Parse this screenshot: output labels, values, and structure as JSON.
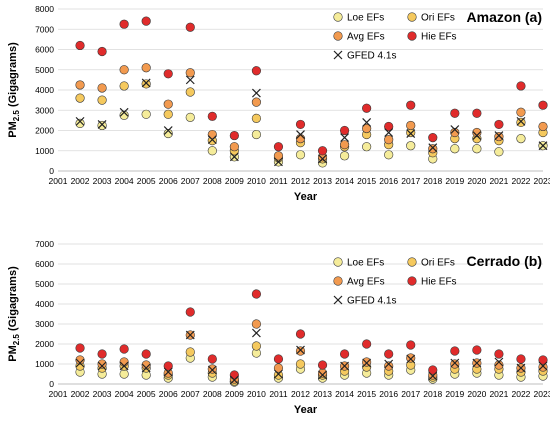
{
  "chart_data": [
    {
      "type": "scatter",
      "title": "Amazon (a)",
      "xlabel": "Year",
      "ylabel": "PM",
      "ylabel_sub": "2.5",
      "ylabel_rest": " (Gigagrams)",
      "x": [
        "2001",
        "2002",
        "2003",
        "2004",
        "2005",
        "2006",
        "2007",
        "2008",
        "2009",
        "2010",
        "2011",
        "2012",
        "2013",
        "2014",
        "2015",
        "2016",
        "2017",
        "2018",
        "2019",
        "2020",
        "2021",
        "2022",
        "2023"
      ],
      "xlim": [
        2001,
        2023
      ],
      "ylim": [
        0,
        8000
      ],
      "yticks": [
        0,
        1000,
        2000,
        3000,
        4000,
        5000,
        6000,
        7000,
        8000
      ],
      "ytick_labels": [
        "0",
        "1000",
        "2000",
        "3000",
        "4000",
        "5000",
        "6000",
        "7000",
        "8000"
      ],
      "legend_position": "top-right",
      "series": [
        {
          "name": "Loe EFs",
          "marker": "circle",
          "color": "#f5ec9a",
          "values": [
            null,
            2350,
            2250,
            2750,
            2800,
            1850,
            2650,
            1000,
            700,
            1800,
            450,
            800,
            400,
            750,
            1200,
            800,
            1250,
            600,
            1100,
            1100,
            950,
            1600,
            1250
          ]
        },
        {
          "name": "Ori EFs",
          "marker": "circle",
          "color": "#f5c95e",
          "values": [
            null,
            3600,
            3500,
            4200,
            4300,
            2800,
            3900,
            1500,
            1000,
            2600,
            650,
            1400,
            600,
            1200,
            1800,
            1300,
            1900,
            900,
            1600,
            1600,
            1500,
            2400,
            1900
          ]
        },
        {
          "name": "Avg EFs",
          "marker": "circle",
          "color": "#f29a4f",
          "values": [
            null,
            4250,
            4100,
            5000,
            5100,
            3300,
            4850,
            1800,
            1200,
            3400,
            750,
            1600,
            700,
            1300,
            2100,
            1550,
            2250,
            1100,
            1900,
            1900,
            1700,
            2900,
            2200
          ]
        },
        {
          "name": "Hie EFs",
          "marker": "circle",
          "color": "#e02b2b",
          "values": [
            null,
            6200,
            5900,
            7250,
            7400,
            4800,
            7100,
            2700,
            1750,
            4950,
            1200,
            2300,
            1000,
            2000,
            3100,
            2200,
            3250,
            1650,
            2850,
            2850,
            2300,
            4200,
            3250
          ]
        },
        {
          "name": "GFED 4.1s",
          "marker": "x",
          "color": "#222222",
          "values": [
            null,
            2450,
            2300,
            2900,
            4350,
            2000,
            4500,
            1550,
            700,
            3850,
            450,
            1800,
            600,
            1650,
            2400,
            1900,
            1850,
            1150,
            2050,
            1750,
            1750,
            2450,
            1250
          ]
        }
      ]
    },
    {
      "type": "scatter",
      "title": "Cerrado (b)",
      "xlabel": "Year",
      "ylabel": "PM",
      "ylabel_sub": "2.5",
      "ylabel_rest": " (Gigagrams)",
      "x": [
        "2001",
        "2002",
        "2003",
        "2004",
        "2005",
        "2006",
        "2007",
        "2008",
        "2009",
        "2010",
        "2011",
        "2012",
        "2013",
        "2014",
        "2015",
        "2016",
        "2017",
        "2018",
        "2019",
        "2020",
        "2021",
        "2022",
        "2023"
      ],
      "xlim": [
        2001,
        2023
      ],
      "ylim": [
        0,
        7000
      ],
      "yticks": [
        0,
        1000,
        2000,
        3000,
        4000,
        5000,
        6000,
        7000
      ],
      "ytick_labels": [
        "0",
        "1000",
        "2000",
        "3000",
        "4000",
        "5000",
        "6000",
        "7000"
      ],
      "legend_position": "top-right",
      "series": [
        {
          "name": "Loe EFs",
          "marker": "circle",
          "color": "#f5ec9a",
          "values": [
            null,
            600,
            500,
            500,
            450,
            300,
            1300,
            350,
            100,
            1550,
            300,
            750,
            300,
            450,
            550,
            450,
            700,
            250,
            500,
            550,
            450,
            350,
            400
          ]
        },
        {
          "name": "Ori EFs",
          "marker": "circle",
          "color": "#f5c95e",
          "values": [
            null,
            900,
            800,
            900,
            800,
            450,
            1600,
            550,
            150,
            1900,
            450,
            1000,
            450,
            650,
            850,
            650,
            950,
            350,
            750,
            750,
            750,
            600,
            650
          ]
        },
        {
          "name": "Avg EFs",
          "marker": "circle",
          "color": "#f29a4f",
          "values": [
            null,
            1200,
            1000,
            1100,
            950,
            550,
            2450,
            750,
            250,
            3000,
            800,
            1650,
            550,
            900,
            1100,
            900,
            1300,
            450,
            1000,
            1050,
            950,
            800,
            850
          ]
        },
        {
          "name": "Hie EFs",
          "marker": "circle",
          "color": "#e02b2b",
          "values": [
            null,
            1800,
            1500,
            1750,
            1500,
            900,
            3600,
            1250,
            450,
            4500,
            1250,
            2500,
            950,
            1500,
            2000,
            1500,
            1950,
            700,
            1650,
            1700,
            1500,
            1250,
            1200
          ]
        },
        {
          "name": "GFED 4.1s",
          "marker": "x",
          "color": "#222222",
          "values": [
            null,
            1050,
            900,
            900,
            800,
            600,
            2450,
            700,
            200,
            2550,
            500,
            1700,
            450,
            900,
            1050,
            1000,
            1250,
            400,
            1050,
            1050,
            1100,
            800,
            900
          ]
        }
      ]
    }
  ]
}
